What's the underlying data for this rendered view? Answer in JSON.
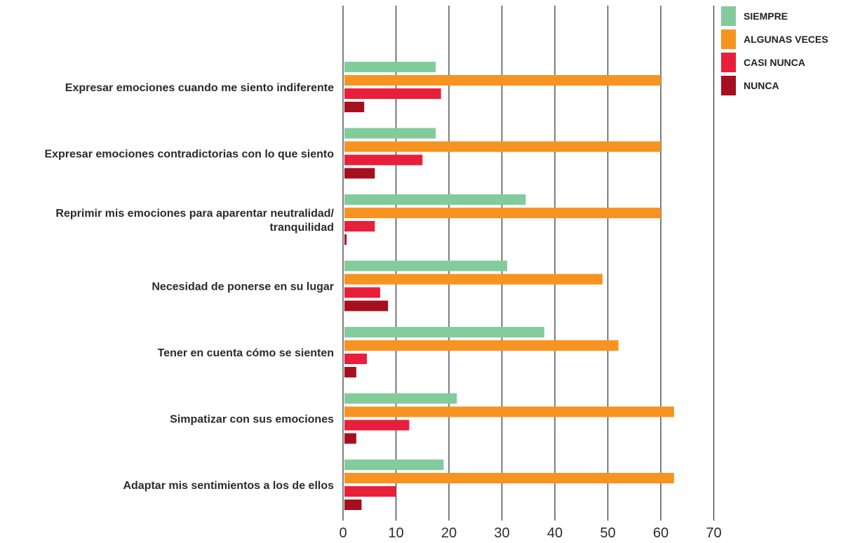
{
  "chart_data": {
    "type": "bar",
    "orientation": "horizontal",
    "title": "",
    "xlabel": "",
    "ylabel": "",
    "xlim": [
      0,
      70
    ],
    "x_ticks": [
      0,
      10,
      20,
      30,
      40,
      50,
      60,
      70
    ],
    "grid": "vertical",
    "legend_position": "top-right",
    "categories": [
      [
        "Expresar emociones cuando me siento indiferente"
      ],
      [
        "Expresar emociones contradictorias con lo que siento"
      ],
      [
        "Reprimir mis emociones para aparentar neutralidad/",
        "tranquilidad"
      ],
      [
        "Necesidad de ponerse en su lugar"
      ],
      [
        "Tener en cuenta cómo se sienten"
      ],
      [
        "Simpatizar con sus emociones"
      ],
      [
        "Adaptar mis sentimientos a los de ellos"
      ]
    ],
    "series": [
      {
        "name": "SIEMPRE",
        "color": "#82cc9c",
        "values": [
          17.5,
          17.5,
          34.5,
          31,
          38,
          21.5,
          19
        ]
      },
      {
        "name": "ALGUNAS VECES",
        "color": "#f79321",
        "values": [
          60,
          60,
          60,
          49,
          52,
          62.5,
          62.5
        ]
      },
      {
        "name": "CASI NUNCA",
        "color": "#e81f3b",
        "values": [
          18.5,
          15,
          6,
          7,
          4.5,
          12.5,
          10
        ]
      },
      {
        "name": "NUNCA",
        "color": "#a60f1e",
        "values": [
          4,
          6,
          0.5,
          8.5,
          2.5,
          2.5,
          3.5
        ]
      }
    ]
  }
}
